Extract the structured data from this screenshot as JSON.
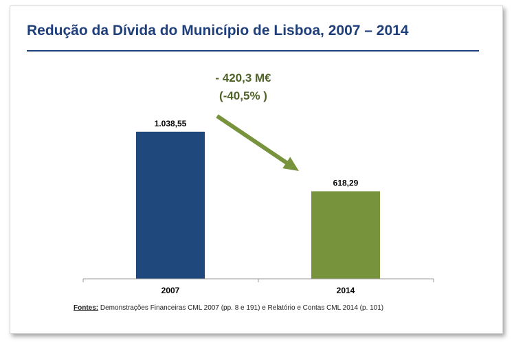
{
  "title": "Redução da Dívida do Município de Lisboa, 2007 – 2014",
  "annotation": {
    "line1": "- 420,3 M€",
    "line2": "(-40,5% )"
  },
  "source": {
    "label": "Fontes:",
    "text": " Demonstrações Financeiras CML 2007  (pp. 8  e  191)  e Relatório e Contas CML 2014  (p. 101)"
  },
  "colors": {
    "title": "#1f3f7a",
    "bar_2007": "#1f497d",
    "bar_2014": "#77933c",
    "arrow": "#77933c",
    "annotation": "#4f6228"
  },
  "chart_data": {
    "type": "bar",
    "categories": [
      "2007",
      "2014"
    ],
    "values": [
      1038.55,
      618.29
    ],
    "value_labels": [
      "1.038,55",
      "618,29"
    ],
    "bar_colors": [
      "#1f497d",
      "#77933c"
    ],
    "title": "Redução da Dívida do Município de Lisboa, 2007 – 2014",
    "xlabel": "",
    "ylabel": "",
    "ylim": [
      0,
      1600
    ],
    "grid": false,
    "legend": "none"
  }
}
